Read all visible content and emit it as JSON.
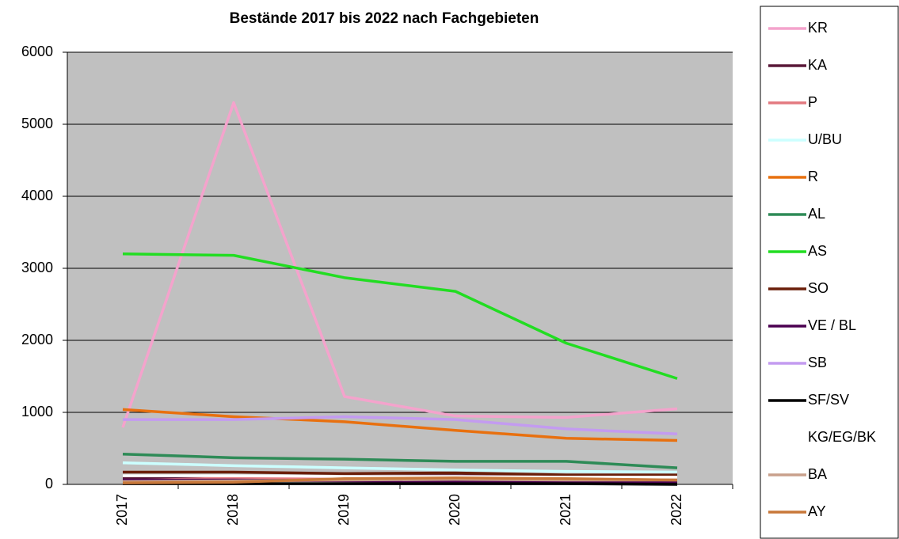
{
  "chart_data": {
    "type": "line",
    "title": "Bestände 2017 bis 2022 nach Fachgebieten",
    "categories": [
      "2017",
      "2018",
      "2019",
      "2020",
      "2021",
      "2022"
    ],
    "ylim": [
      0,
      6000
    ],
    "yticks": [
      0,
      1000,
      2000,
      3000,
      4000,
      5000,
      6000
    ],
    "grid": true,
    "legend": "right",
    "series": [
      {
        "name": "KR",
        "color": "#f4a3cc",
        "values": [
          790,
          5300,
          1220,
          950,
          930,
          1050
        ]
      },
      {
        "name": "KA",
        "color": "#5a1838",
        "values": [
          90,
          100,
          110,
          120,
          110,
          100
        ]
      },
      {
        "name": "P",
        "color": "#e37a80",
        "values": [
          50,
          90,
          80,
          70,
          60,
          60
        ]
      },
      {
        "name": "U/BU",
        "color": "#ccffff",
        "values": [
          300,
          260,
          230,
          200,
          180,
          170
        ]
      },
      {
        "name": "R",
        "color": "#e8700f",
        "values": [
          1040,
          940,
          870,
          750,
          640,
          610
        ]
      },
      {
        "name": "AL",
        "color": "#2e8b57",
        "values": [
          420,
          370,
          350,
          320,
          320,
          230
        ]
      },
      {
        "name": "AS",
        "color": "#22dd22",
        "values": [
          3200,
          3180,
          2870,
          2680,
          1960,
          1470
        ]
      },
      {
        "name": "SO",
        "color": "#6b1f0a",
        "values": [
          170,
          170,
          150,
          160,
          130,
          130
        ]
      },
      {
        "name": "VE / BL",
        "color": "#4b0050",
        "values": [
          60,
          60,
          50,
          40,
          30,
          30
        ]
      },
      {
        "name": "SB",
        "color": "#c39bf0",
        "values": [
          900,
          900,
          940,
          900,
          770,
          700
        ]
      },
      {
        "name": "SF/SV",
        "color": "#000000",
        "values": [
          10,
          10,
          10,
          10,
          10,
          0
        ]
      },
      {
        "name": "KG/EG/BK",
        "color": "#ffffff",
        "values": [
          120,
          120,
          110,
          110,
          100,
          100
        ]
      },
      {
        "name": "BA",
        "color": "#c9a08c",
        "values": [
          40,
          50,
          60,
          70,
          60,
          60
        ]
      },
      {
        "name": "AY",
        "color": "#c8783a",
        "values": [
          20,
          30,
          80,
          90,
          80,
          60
        ]
      }
    ]
  }
}
